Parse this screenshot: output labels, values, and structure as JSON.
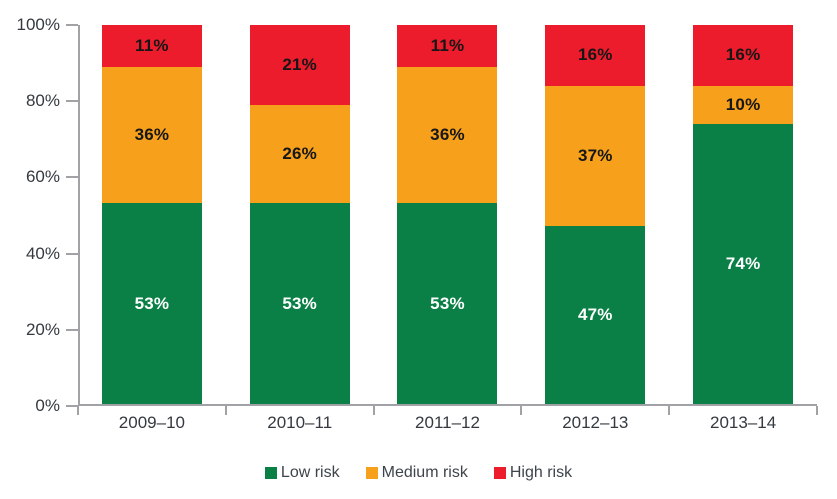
{
  "chart_data": {
    "type": "bar",
    "stacked": true,
    "orientation": "vertical",
    "categories": [
      "2009–10",
      "2010–11",
      "2011–12",
      "2012–13",
      "2013–14"
    ],
    "series": [
      {
        "name": "Low risk",
        "color": "#0A8046",
        "label_color": "#FFFFFF",
        "values": [
          53,
          53,
          53,
          47,
          74
        ]
      },
      {
        "name": "Medium risk",
        "color": "#F6A01C",
        "label_color": "#161616",
        "values": [
          36,
          26,
          36,
          37,
          10
        ]
      },
      {
        "name": "High risk",
        "color": "#EC1C2C",
        "label_color": "#161616",
        "values": [
          11,
          21,
          11,
          16,
          16
        ]
      }
    ],
    "value_suffix": "%",
    "ylim": [
      0,
      100
    ],
    "y_ticks": [
      {
        "value": 0,
        "label": "0%"
      },
      {
        "value": 20,
        "label": "20%"
      },
      {
        "value": 40,
        "label": "40%"
      },
      {
        "value": 60,
        "label": "60%"
      },
      {
        "value": 80,
        "label": "80%"
      },
      {
        "value": 100,
        "label": "100%"
      }
    ],
    "grid": false,
    "legend_position": "bottom",
    "styles": {
      "axis_color": "#A0A2A5",
      "axis_text_color": "#343A40",
      "legend_text_color": "#3D444B"
    }
  }
}
